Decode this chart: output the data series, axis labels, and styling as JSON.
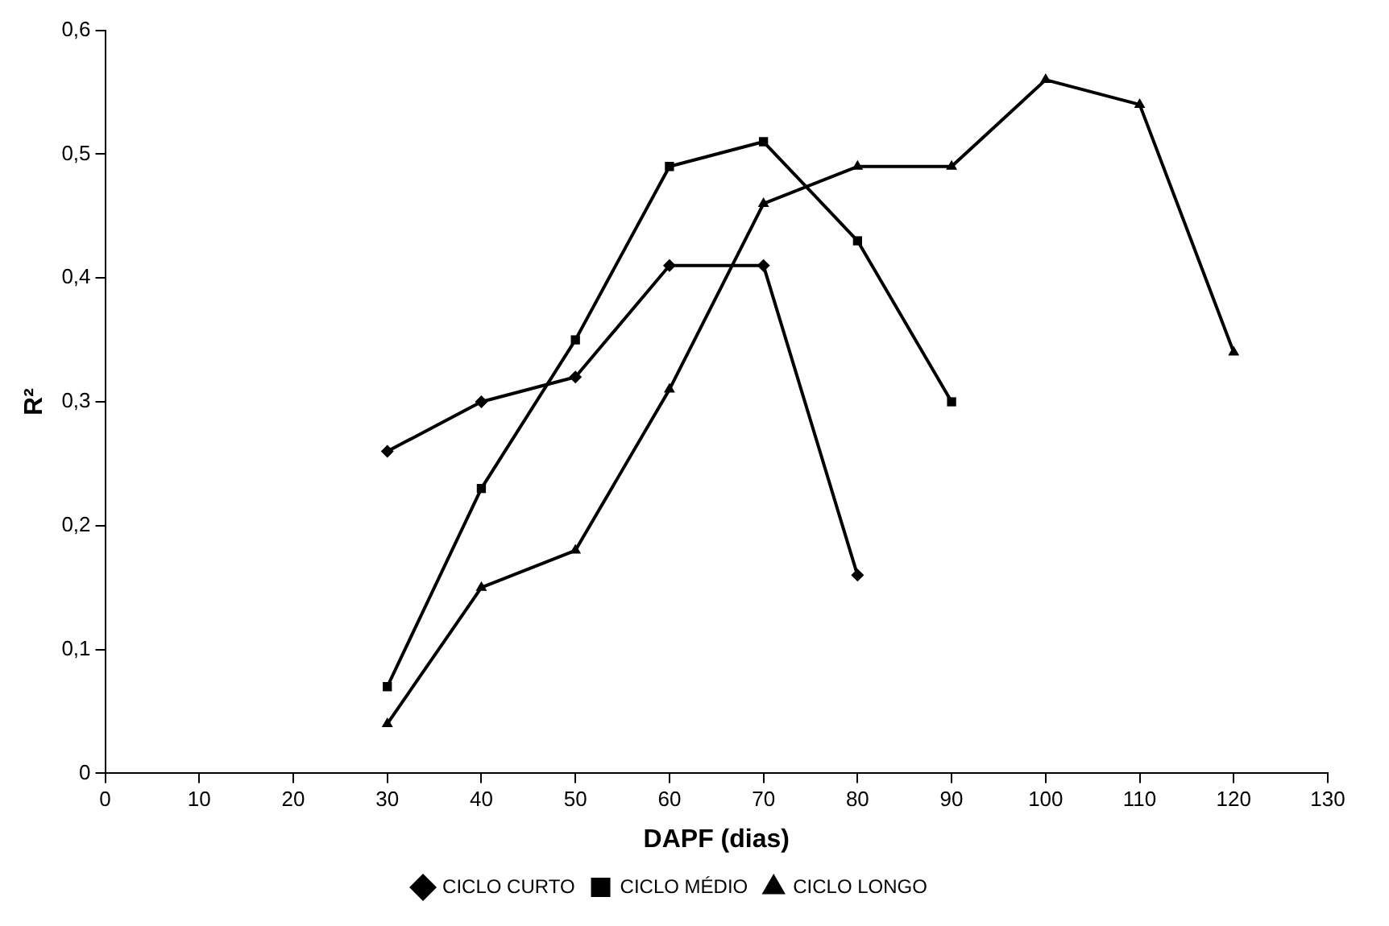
{
  "chart_data": {
    "type": "line",
    "xlabel": "DAPF (dias)",
    "ylabel": "R²",
    "xlim": [
      0,
      130
    ],
    "xticks": [
      0,
      10,
      20,
      30,
      40,
      50,
      60,
      70,
      80,
      90,
      100,
      110,
      120,
      130
    ],
    "ylim": [
      0,
      0.6
    ],
    "yticks": [
      {
        "value": 0,
        "label": "0"
      },
      {
        "value": 0.1,
        "label": "0,1"
      },
      {
        "value": 0.2,
        "label": "0,2"
      },
      {
        "value": 0.3,
        "label": "0,3"
      },
      {
        "value": 0.4,
        "label": "0,4"
      },
      {
        "value": 0.5,
        "label": "0,5"
      },
      {
        "value": 0.6,
        "label": "0,6"
      }
    ],
    "grid": false,
    "legend": "bottom",
    "line_style": "solid",
    "series": [
      {
        "name": "CICLO CURTO",
        "color": "#000000",
        "marker": "diamond",
        "x": [
          30,
          40,
          50,
          60,
          70,
          80
        ],
        "values": [
          0.26,
          0.3,
          0.32,
          0.41,
          0.41,
          0.16
        ]
      },
      {
        "name": "CICLO MÉDIO",
        "color": "#000000",
        "marker": "square",
        "x": [
          30,
          40,
          50,
          60,
          70,
          80,
          90
        ],
        "values": [
          0.07,
          0.23,
          0.35,
          0.49,
          0.51,
          0.43,
          0.3
        ]
      },
      {
        "name": "CICLO LONGO",
        "color": "#000000",
        "marker": "triangle",
        "x": [
          30,
          40,
          50,
          60,
          70,
          80,
          90,
          100,
          110,
          120
        ],
        "values": [
          0.04,
          0.15,
          0.18,
          0.31,
          0.46,
          0.49,
          0.49,
          0.56,
          0.54,
          0.34
        ]
      }
    ]
  }
}
